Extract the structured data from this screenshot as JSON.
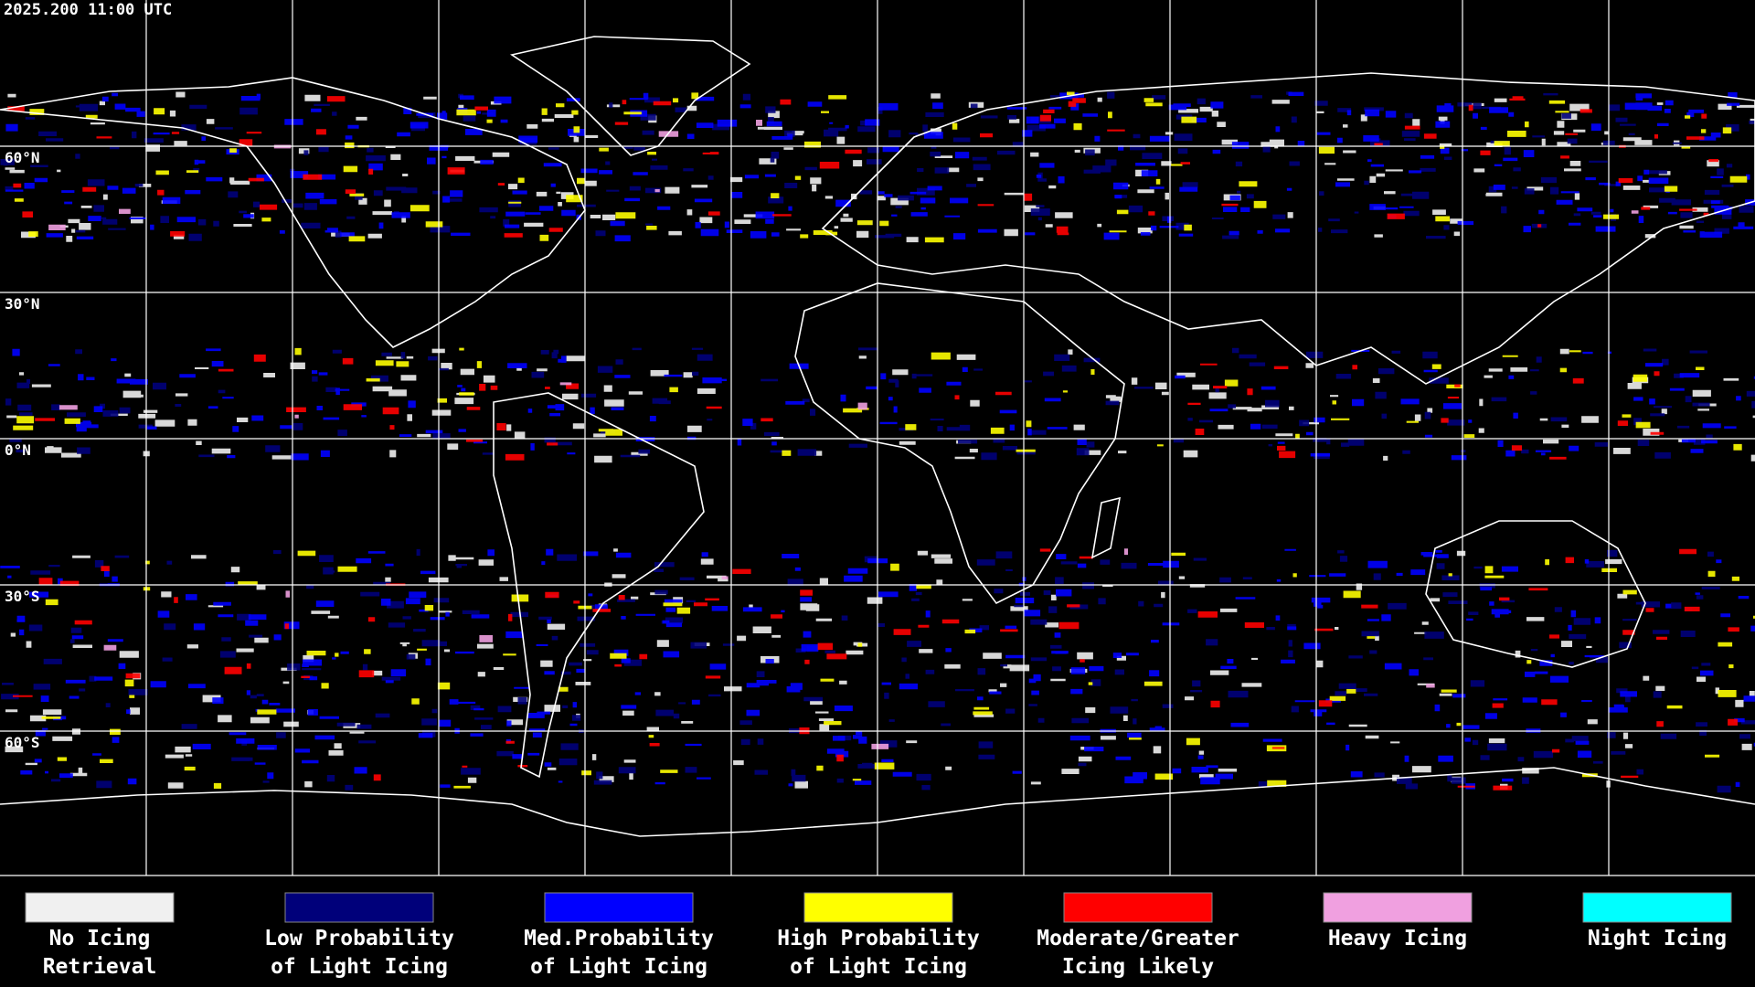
{
  "header": {
    "timestamp": "2025.200 11:00 UTC"
  },
  "map": {
    "lat_labels": [
      "60°N",
      "30°N",
      "0°N",
      "30°S",
      "60°S"
    ]
  },
  "legend": {
    "items": [
      {
        "color": "#f0f0f0",
        "line1": "No Icing",
        "line2": "Retrieval"
      },
      {
        "color": "#00007a",
        "line1": "Low Probability",
        "line2": "of Light Icing"
      },
      {
        "color": "#0000ff",
        "line1": "Med.Probability",
        "line2": "of Light Icing"
      },
      {
        "color": "#ffff00",
        "line1": "High Probability",
        "line2": "of Light Icing"
      },
      {
        "color": "#ff0000",
        "line1": "Moderate/Greater",
        "line2": "Icing Likely"
      },
      {
        "color": "#f0a0e0",
        "line1": "Heavy Icing",
        "line2": ""
      },
      {
        "color": "#00ffff",
        "line1": "Night Icing",
        "line2": ""
      }
    ]
  }
}
